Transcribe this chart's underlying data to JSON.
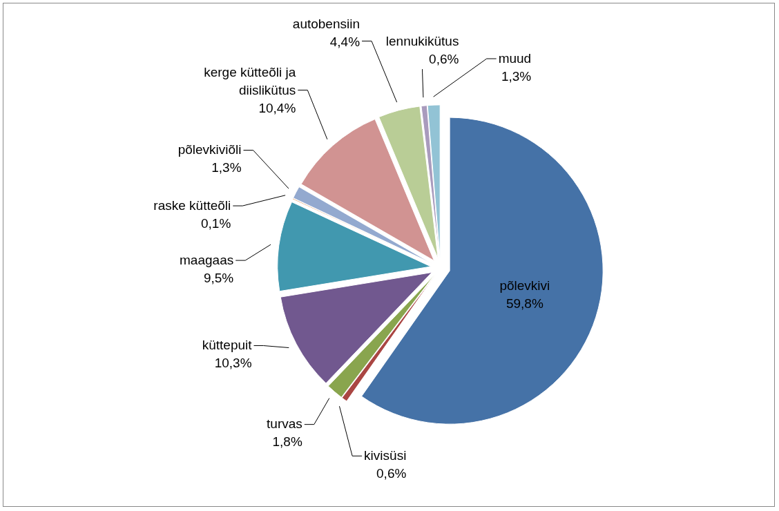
{
  "chart_data": {
    "type": "pie",
    "categories": [
      "põlevkivi",
      "kivisüsi",
      "turvas",
      "küttepuit",
      "maagaas",
      "raske kütteõli",
      "põlevkiviõli",
      "kerge kütteõli ja diislikütus",
      "autobensiin",
      "lennukikütus",
      "muud"
    ],
    "values": [
      59.8,
      0.6,
      1.8,
      10.3,
      9.5,
      0.1,
      1.3,
      10.4,
      4.4,
      0.6,
      1.3
    ],
    "value_labels": [
      "59,8%",
      "0,6%",
      "1,8%",
      "10,3%",
      "9,5%",
      "0,1%",
      "1,3%",
      "10,4%",
      "4,4%",
      "0,6%",
      "1,3%"
    ],
    "colors": [
      "#4572a7",
      "#aa4643",
      "#89a54e",
      "#71588f",
      "#4198af",
      "#db843d",
      "#93a9cf",
      "#d19392",
      "#b9cd96",
      "#a99bbd",
      "#92c3d5"
    ],
    "legend": false
  }
}
